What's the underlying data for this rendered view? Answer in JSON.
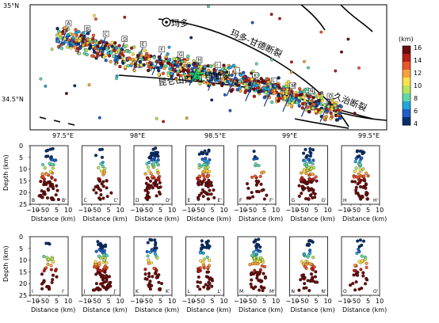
{
  "map": {
    "lat_labels": [
      "35°N",
      "34.5°N"
    ],
    "lon_labels": [
      "97.5°E",
      "98°E",
      "98.5°E",
      "99°E",
      "99.5°E"
    ],
    "place_name": "玛多",
    "fault_labels": [
      "玛多-甘德断裂",
      "昆仑山口-江错断裂",
      "久治断裂"
    ],
    "profile_letters": [
      "A",
      "B",
      "C",
      "D",
      "E",
      "F",
      "G",
      "H",
      "I",
      "J",
      "K",
      "L",
      "M",
      "N",
      "O"
    ]
  },
  "colorbar": {
    "unit": "(km)",
    "ticks": [
      "16",
      "14",
      "12",
      "10",
      "8",
      "6",
      "4"
    ],
    "colors": [
      "#08306b",
      "#1f5fc7",
      "#27a4d8",
      "#5fd6a8",
      "#b9e35a",
      "#ffe14a",
      "#f9a23a",
      "#e8572a",
      "#b71f1b",
      "#6b0d0d"
    ]
  },
  "sections": {
    "row1": [
      {
        "a": "B",
        "b": "B'"
      },
      {
        "a": "C",
        "b": "C'"
      },
      {
        "a": "D",
        "b": "D'"
      },
      {
        "a": "E",
        "b": "E'"
      },
      {
        "a": "F",
        "b": "F'"
      },
      {
        "a": "G",
        "b": "G'"
      },
      {
        "a": "H",
        "b": "H'"
      }
    ],
    "row2": [
      {
        "a": "I",
        "b": "I'"
      },
      {
        "a": "J",
        "b": "J'"
      },
      {
        "a": "K",
        "b": "K'"
      },
      {
        "a": "L",
        "b": "L'"
      },
      {
        "a": "M",
        "b": "M'"
      },
      {
        "a": "N",
        "b": "N'"
      },
      {
        "a": "O",
        "b": "O'"
      }
    ],
    "x_ticks": [
      "−10",
      "−5",
      "0",
      "5",
      "10"
    ],
    "y_ticks": [
      "0",
      "5",
      "10",
      "15",
      "20",
      "25"
    ],
    "xlabel": "Distance (km)",
    "ylabel": "Depth (km)"
  }
}
